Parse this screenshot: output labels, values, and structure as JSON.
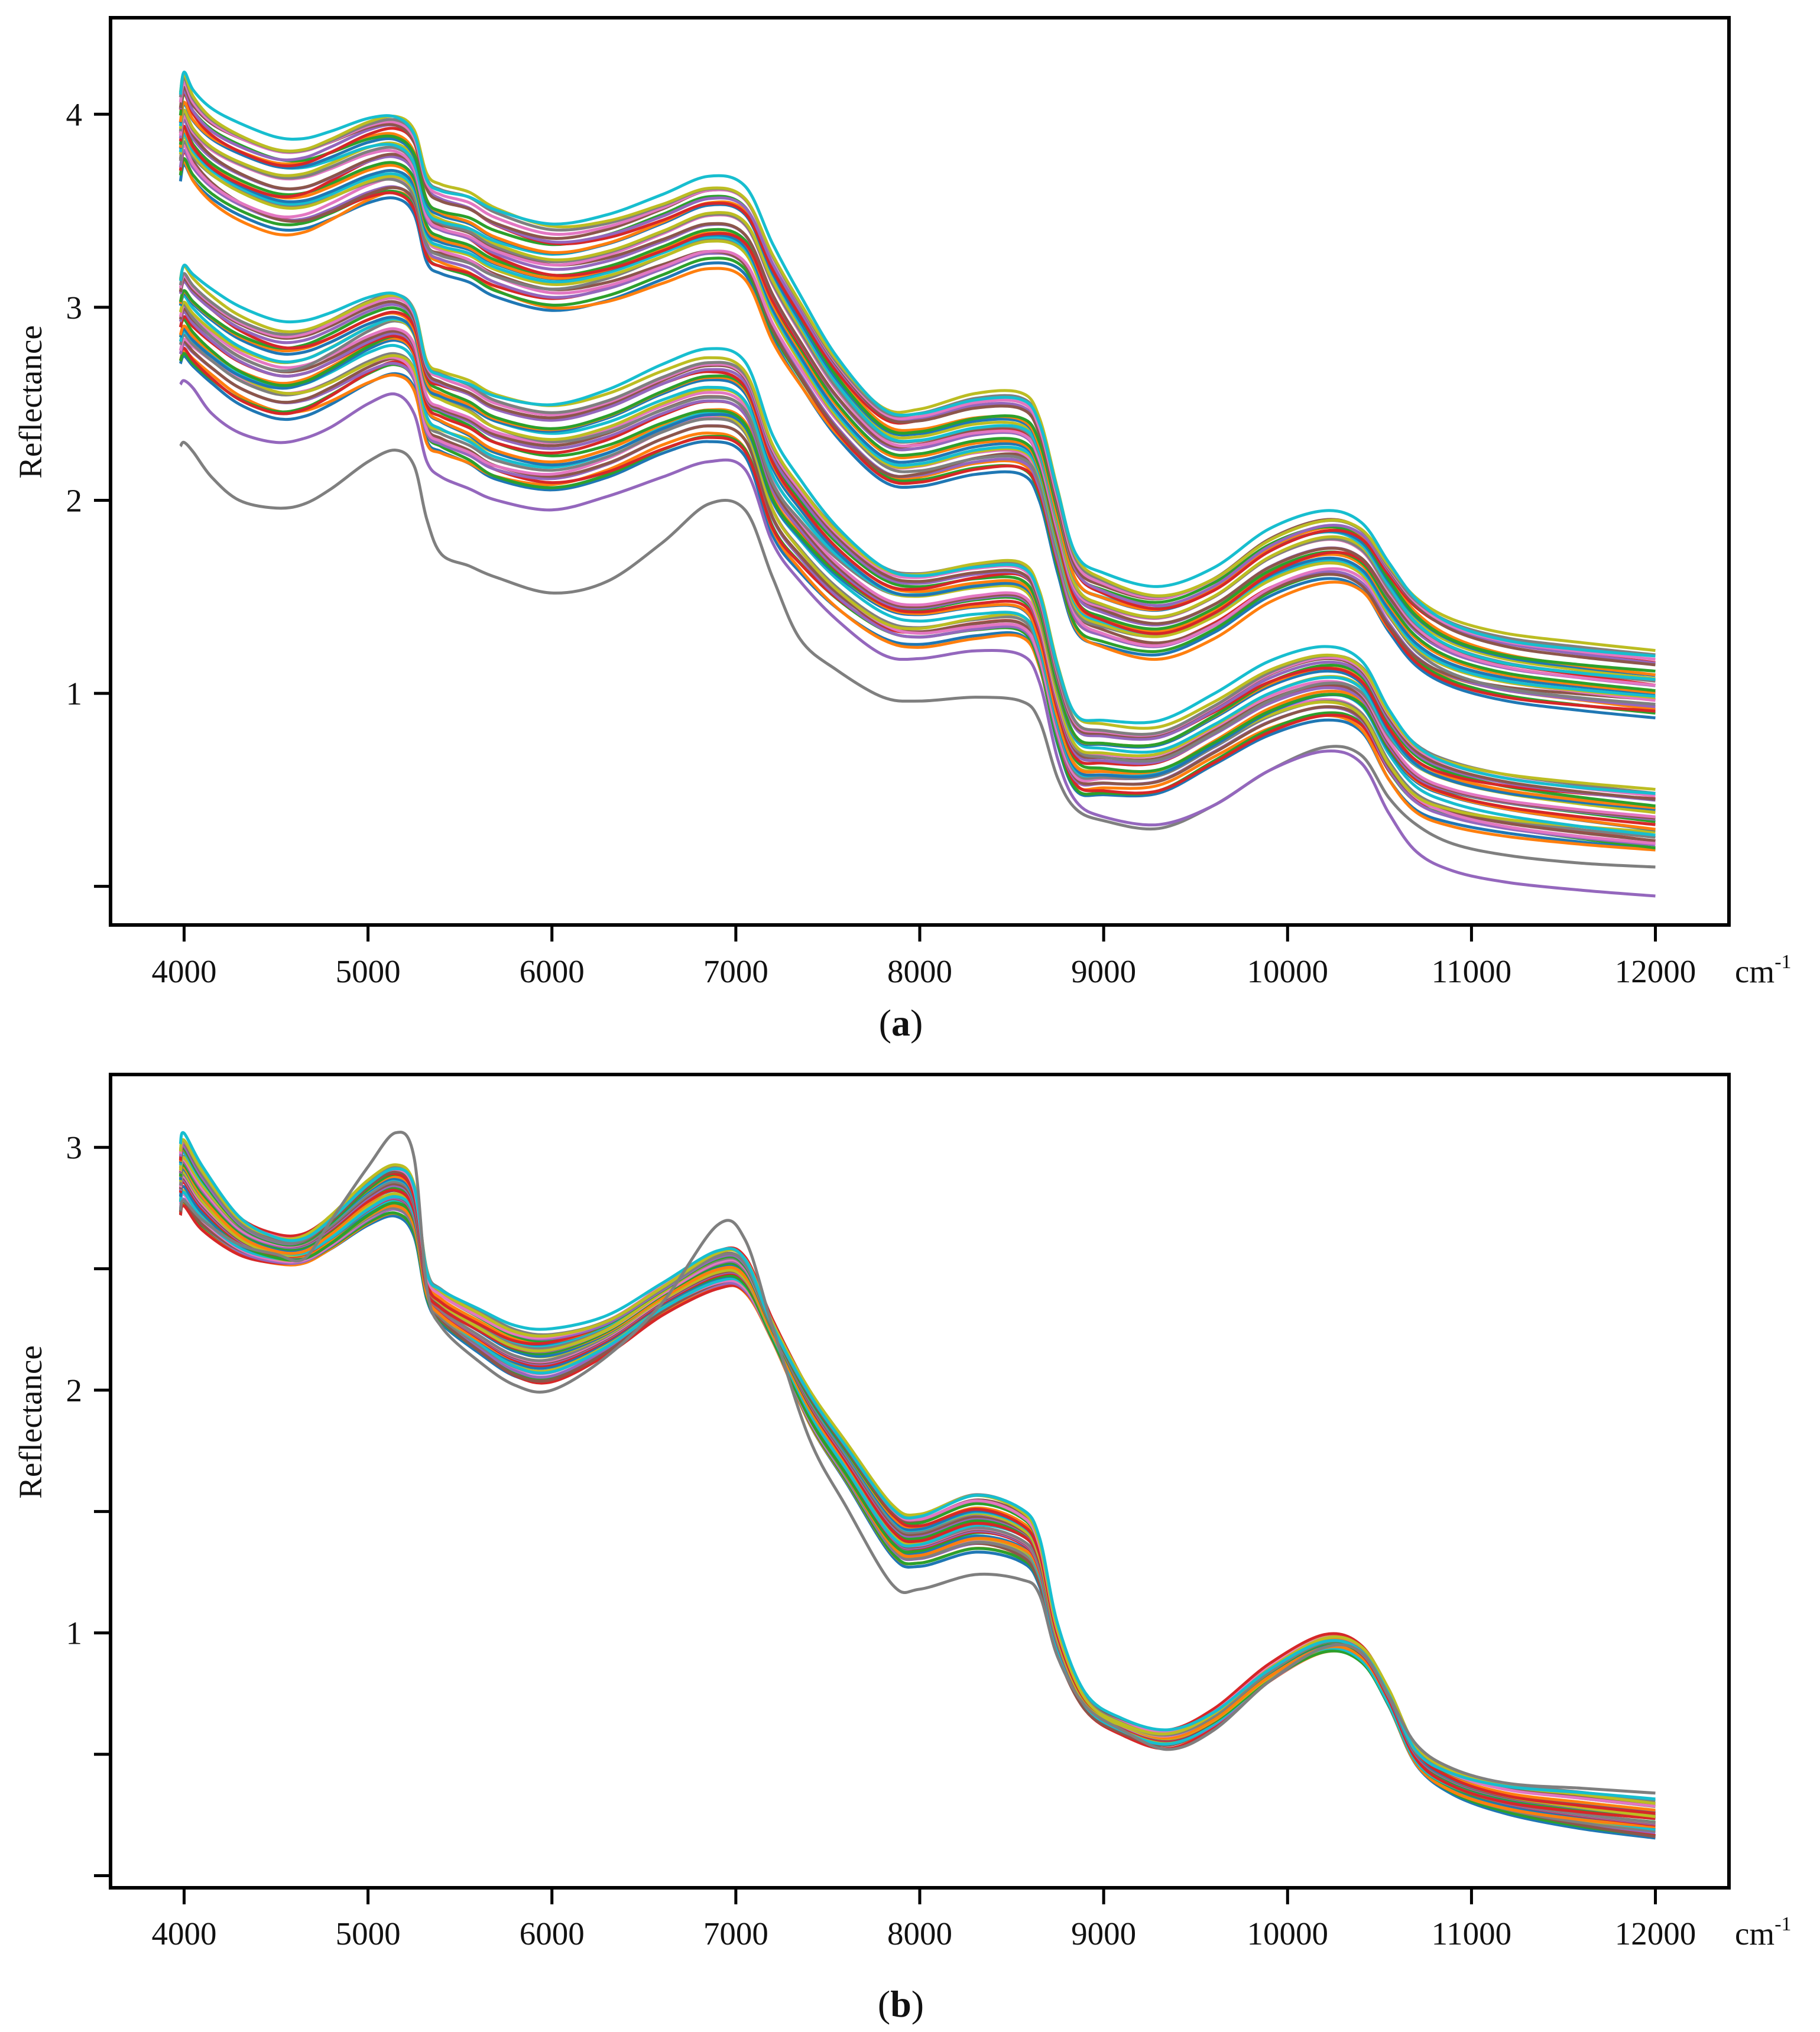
{
  "figure": {
    "unit_main": "cm",
    "unit_sup": "-1"
  },
  "chart_data": [
    {
      "type": "line",
      "panel_label": "a",
      "ylabel": "Reflectance",
      "xlabel": "cm-1",
      "xlim": [
        3600,
        12400
      ],
      "ylim": [
        -0.2,
        4.5
      ],
      "xticks": [
        4000,
        5000,
        6000,
        7000,
        8000,
        9000,
        10000,
        11000,
        12000
      ],
      "xtick_labels": [
        "4000",
        "5000",
        "6000",
        "7000",
        "8000",
        "9000",
        "10000",
        "11000",
        "12000"
      ],
      "yticks": [
        0,
        1,
        2,
        3,
        4
      ],
      "ytick_labels": [
        "",
        "1",
        "2",
        "3",
        "4"
      ],
      "series_count": 60,
      "curve_x": [
        3980,
        4000,
        4050,
        4150,
        4300,
        4500,
        4650,
        4800,
        5000,
        5150,
        5250,
        5320,
        5400,
        5550,
        5700,
        6000,
        6300,
        6600,
        6850,
        7050,
        7200,
        7350,
        7550,
        7800,
        8000,
        8300,
        8550,
        8650,
        8750,
        8850,
        9000,
        9300,
        9600,
        9900,
        10200,
        10400,
        10550,
        10700,
        10900,
        11200,
        11600,
        12000
      ],
      "group_top": [
        4.0,
        4.1,
        4.0,
        3.9,
        3.82,
        3.75,
        3.75,
        3.8,
        3.88,
        3.9,
        3.82,
        3.58,
        3.52,
        3.48,
        3.4,
        3.32,
        3.36,
        3.46,
        3.55,
        3.5,
        3.2,
        2.95,
        2.65,
        2.4,
        2.38,
        2.45,
        2.45,
        2.32,
        1.95,
        1.62,
        1.52,
        1.45,
        1.55,
        1.75,
        1.85,
        1.8,
        1.6,
        1.42,
        1.3,
        1.22,
        1.17,
        1.13
      ],
      "group_bottom": [
        2.8,
        2.85,
        2.8,
        2.72,
        2.62,
        2.55,
        2.56,
        2.62,
        2.72,
        2.76,
        2.68,
        2.4,
        2.34,
        2.28,
        2.2,
        2.15,
        2.22,
        2.35,
        2.42,
        2.35,
        1.95,
        1.75,
        1.55,
        1.38,
        1.34,
        1.38,
        1.38,
        1.22,
        0.82,
        0.58,
        0.56,
        0.57,
        0.72,
        0.88,
        0.96,
        0.9,
        0.65,
        0.48,
        0.4,
        0.34,
        0.29,
        0.25
      ],
      "highlight_series": [
        {
          "name": "lowest-gray",
          "values": [
            2.28,
            2.3,
            2.25,
            2.12,
            2.0,
            1.96,
            1.98,
            2.06,
            2.2,
            2.26,
            2.18,
            1.9,
            1.72,
            1.66,
            1.6,
            1.52,
            1.58,
            1.78,
            1.98,
            1.95,
            1.6,
            1.28,
            1.12,
            0.98,
            0.96,
            0.98,
            0.96,
            0.86,
            0.56,
            0.4,
            0.34,
            0.3,
            0.42,
            0.6,
            0.72,
            0.68,
            0.46,
            0.32,
            0.22,
            0.16,
            0.12,
            0.1
          ]
        },
        {
          "name": "purple-lowest-tail",
          "values": [
            2.6,
            2.62,
            2.58,
            2.45,
            2.35,
            2.3,
            2.32,
            2.38,
            2.5,
            2.55,
            2.45,
            2.2,
            2.12,
            2.06,
            2.0,
            1.95,
            2.02,
            2.12,
            2.2,
            2.16,
            1.78,
            1.58,
            1.38,
            1.2,
            1.18,
            1.22,
            1.2,
            1.06,
            0.66,
            0.44,
            0.36,
            0.32,
            0.42,
            0.6,
            0.7,
            0.64,
            0.38,
            0.18,
            0.08,
            0.02,
            -0.02,
            -0.05
          ]
        }
      ]
    },
    {
      "type": "line",
      "panel_label": "b",
      "ylabel": "Reflectance",
      "xlabel": "cm-1",
      "xlim": [
        3600,
        12400
      ],
      "ylim": [
        -0.05,
        3.3
      ],
      "xticks": [
        4000,
        5000,
        6000,
        7000,
        8000,
        9000,
        10000,
        11000,
        12000
      ],
      "xtick_labels": [
        "4000",
        "5000",
        "6000",
        "7000",
        "8000",
        "9000",
        "10000",
        "11000",
        "12000"
      ],
      "yticks": [
        0,
        0.5,
        1,
        1.5,
        2,
        2.5,
        3
      ],
      "ytick_labels": [
        "",
        "",
        "1",
        "",
        "2",
        "",
        "3"
      ],
      "series_count": 40,
      "curve_x": [
        3980,
        4000,
        4100,
        4300,
        4500,
        4650,
        4800,
        5000,
        5150,
        5250,
        5320,
        5400,
        5600,
        5800,
        6000,
        6300,
        6600,
        6900,
        7050,
        7200,
        7400,
        7600,
        7850,
        8000,
        8300,
        8550,
        8650,
        8750,
        8900,
        9100,
        9350,
        9600,
        9900,
        10200,
        10400,
        10550,
        10700,
        10900,
        11200,
        11600,
        12000
      ],
      "group_top": [
        3.0,
        3.05,
        2.92,
        2.72,
        2.64,
        2.64,
        2.72,
        2.86,
        2.92,
        2.84,
        2.48,
        2.4,
        2.32,
        2.25,
        2.24,
        2.3,
        2.44,
        2.58,
        2.55,
        2.28,
        2.0,
        1.78,
        1.52,
        1.48,
        1.56,
        1.5,
        1.38,
        1.02,
        0.74,
        0.64,
        0.6,
        0.68,
        0.86,
        0.98,
        0.94,
        0.76,
        0.52,
        0.42,
        0.36,
        0.33,
        0.3
      ],
      "group_bottom": [
        2.72,
        2.76,
        2.66,
        2.56,
        2.52,
        2.52,
        2.58,
        2.68,
        2.72,
        2.64,
        2.38,
        2.28,
        2.16,
        2.06,
        2.04,
        2.16,
        2.32,
        2.42,
        2.4,
        2.2,
        1.86,
        1.62,
        1.32,
        1.28,
        1.34,
        1.3,
        1.2,
        0.92,
        0.7,
        0.6,
        0.54,
        0.62,
        0.8,
        0.92,
        0.88,
        0.7,
        0.46,
        0.34,
        0.26,
        0.2,
        0.16
      ],
      "highlight_series": [
        {
          "name": "gray-extreme",
          "values": [
            2.74,
            2.78,
            2.7,
            2.6,
            2.56,
            2.54,
            2.7,
            2.92,
            3.06,
            2.96,
            2.42,
            2.26,
            2.12,
            2.02,
            2.0,
            2.14,
            2.36,
            2.68,
            2.62,
            2.26,
            1.8,
            1.52,
            1.2,
            1.18,
            1.24,
            1.22,
            1.16,
            0.9,
            0.7,
            0.6,
            0.52,
            0.6,
            0.8,
            0.94,
            0.92,
            0.74,
            0.54,
            0.44,
            0.38,
            0.36,
            0.34
          ]
        }
      ]
    }
  ]
}
